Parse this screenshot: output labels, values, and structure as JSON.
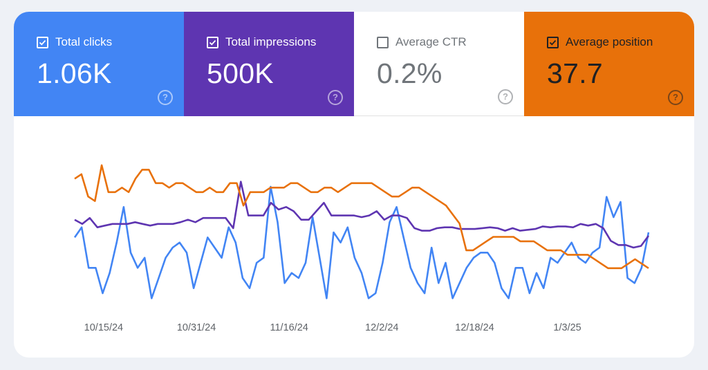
{
  "metrics": [
    {
      "label": "Total clicks",
      "value": "1.06K",
      "checked": true,
      "color": "#4285f4"
    },
    {
      "label": "Total impressions",
      "value": "500K",
      "checked": true,
      "color": "#5e35b1"
    },
    {
      "label": "Average CTR",
      "value": "0.2%",
      "checked": false,
      "color": "#ffffff"
    },
    {
      "label": "Average position",
      "value": "37.7",
      "checked": true,
      "color": "#e8710a"
    }
  ],
  "help_icon": "?",
  "chart_data": {
    "type": "line",
    "x_start": "10/10/24",
    "x_end": "1/17/25",
    "xtick_labels": [
      "10/15/24",
      "10/31/24",
      "11/16/24",
      "12/2/24",
      "12/18/24",
      "1/3/25"
    ],
    "grid": false,
    "legend": "none",
    "series": [
      {
        "color": "#4285f4",
        "values": [
          14,
          16,
          8,
          8,
          3,
          7,
          13,
          20,
          11,
          8,
          10,
          2,
          6,
          10,
          12,
          13,
          11,
          4,
          9,
          14,
          12,
          10,
          16,
          13,
          6,
          4,
          9,
          10,
          24,
          17,
          5,
          7,
          6,
          9,
          18,
          10,
          2,
          15,
          13,
          16,
          10,
          7,
          2,
          3,
          9,
          17,
          20,
          14,
          8,
          5,
          3,
          12,
          5,
          9,
          2,
          5,
          8,
          10,
          11,
          11,
          9,
          4,
          2,
          8,
          8,
          3,
          7,
          4,
          10,
          9,
          11,
          13,
          10,
          9,
          11,
          12,
          22,
          18,
          21,
          6,
          5,
          8,
          15
        ],
        "axis": [
          0,
          30
        ]
      },
      {
        "color": "#5e35b1",
        "values": [
          1.05,
          1.0,
          1.07,
          0.96,
          0.98,
          1.0,
          1.0,
          1.0,
          1.02,
          1.0,
          0.98,
          1.0,
          1.0,
          1.0,
          1.02,
          1.05,
          1.02,
          1.07,
          1.07,
          1.07,
          1.07,
          0.95,
          1.5,
          1.1,
          1.1,
          1.1,
          1.25,
          1.17,
          1.2,
          1.15,
          1.05,
          1.05,
          1.15,
          1.25,
          1.1,
          1.1,
          1.1,
          1.1,
          1.08,
          1.1,
          1.15,
          1.05,
          1.1,
          1.1,
          1.07,
          0.95,
          0.92,
          0.92,
          0.95,
          0.96,
          0.96,
          0.94,
          0.94,
          0.94,
          0.95,
          0.96,
          0.95,
          0.92,
          0.95,
          0.92,
          0.93,
          0.94,
          0.97,
          0.96,
          0.97,
          0.97,
          0.96,
          1.0,
          0.98,
          1.0,
          0.95,
          0.8,
          0.75,
          0.75,
          0.72,
          0.74,
          0.86
        ],
        "axis": [
          0,
          1.8
        ]
      },
      {
        "color": "#e8710a",
        "values": [
          54,
          55,
          50,
          49,
          57,
          51,
          51,
          52,
          51,
          54,
          56,
          56,
          53,
          53,
          52,
          53,
          53,
          52,
          51,
          51,
          52,
          51,
          51,
          53,
          53,
          48,
          51,
          51,
          51,
          52,
          52,
          52,
          53,
          53,
          52,
          51,
          51,
          52,
          52,
          51,
          52,
          53,
          53,
          53,
          53,
          52,
          51,
          50,
          50,
          51,
          52,
          52,
          51,
          50,
          49,
          48,
          46,
          44,
          38,
          38,
          39,
          40,
          41,
          41,
          41,
          41,
          40,
          40,
          40,
          39,
          38,
          38,
          38,
          37,
          37,
          37,
          37,
          36,
          35,
          34,
          34,
          34,
          35,
          36,
          35,
          34
        ],
        "axis": [
          25,
          59
        ]
      }
    ]
  }
}
